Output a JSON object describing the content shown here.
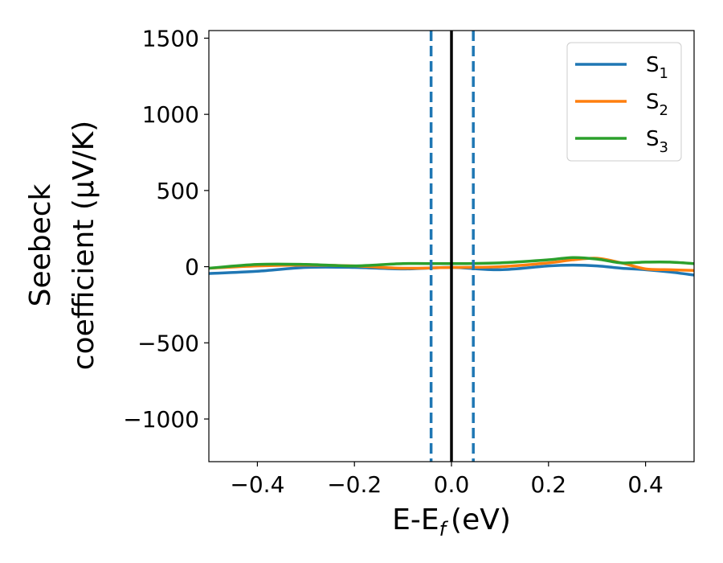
{
  "chart_data": {
    "type": "line",
    "xlabel": "E-E",
    "xlabel_sub": "f",
    "xlabel_unit": "(eV)",
    "ylabel_line1": "Seebeck",
    "ylabel_line2": "coefficient  (μV/K)",
    "xlim": [
      -0.5,
      0.5
    ],
    "ylim": [
      -1280,
      1550
    ],
    "xticks": [
      -0.4,
      -0.2,
      0.0,
      0.2,
      0.4
    ],
    "xtick_labels": [
      "−0.4",
      "−0.2",
      "0.0",
      "0.2",
      "0.4"
    ],
    "yticks": [
      -1000,
      -500,
      0,
      500,
      1000,
      1500
    ],
    "ytick_labels": [
      "−1000",
      "−500",
      "0",
      "500",
      "1000",
      "1500"
    ],
    "grid": false,
    "legend_position": "top-right",
    "vlines": [
      {
        "x": -0.042,
        "style": "dashed",
        "color": "#1f77b4"
      },
      {
        "x": 0.0,
        "style": "solid",
        "color": "#000000"
      },
      {
        "x": 0.045,
        "style": "dashed",
        "color": "#1f77b4"
      }
    ],
    "series": [
      {
        "name": "S",
        "name_sub": "1",
        "color": "#1f77b4",
        "x": [
          -0.5,
          -0.4,
          -0.3,
          -0.2,
          -0.1,
          0.0,
          0.1,
          0.2,
          0.25,
          0.3,
          0.35,
          0.4,
          0.45,
          0.5
        ],
        "y": [
          -45,
          -30,
          -5,
          -5,
          -15,
          -5,
          -20,
          5,
          10,
          5,
          -10,
          -20,
          -35,
          -55
        ]
      },
      {
        "name": "S",
        "name_sub": "2",
        "color": "#ff7f0e",
        "x": [
          -0.5,
          -0.4,
          -0.3,
          -0.2,
          -0.1,
          0.0,
          0.1,
          0.2,
          0.25,
          0.3,
          0.35,
          0.4,
          0.45,
          0.5
        ],
        "y": [
          -10,
          5,
          10,
          5,
          -10,
          -5,
          0,
          25,
          45,
          55,
          25,
          -15,
          -20,
          -25
        ]
      },
      {
        "name": "S",
        "name_sub": "3",
        "color": "#2ca02c",
        "x": [
          -0.5,
          -0.4,
          -0.3,
          -0.2,
          -0.1,
          0.0,
          0.1,
          0.2,
          0.25,
          0.3,
          0.35,
          0.4,
          0.45,
          0.5
        ],
        "y": [
          -10,
          15,
          15,
          5,
          20,
          20,
          25,
          45,
          60,
          50,
          25,
          30,
          30,
          20
        ]
      }
    ]
  }
}
